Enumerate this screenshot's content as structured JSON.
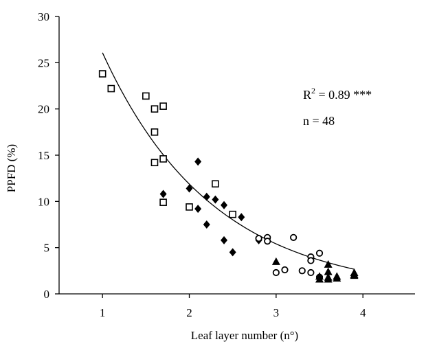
{
  "chart_data": {
    "type": "scatter",
    "xlabel": "Leaf layer number (n°)",
    "ylabel": "PPFD (%)",
    "xlim": [
      0.5,
      4.6
    ],
    "ylim": [
      0,
      30
    ],
    "xticks": [
      1,
      2,
      3,
      4
    ],
    "yticks": [
      0,
      5,
      10,
      15,
      20,
      25,
      30
    ],
    "grid": false,
    "legend": "none",
    "annotations": {
      "r2_prefix": "R",
      "r2_sup": "2",
      "r2_suffix": " = 0.89 ***",
      "n_text": "n = 48"
    },
    "series": [
      {
        "marker": "open-square",
        "points": [
          [
            1.0,
            23.8
          ],
          [
            1.1,
            22.2
          ],
          [
            1.5,
            21.4
          ],
          [
            1.6,
            20.0
          ],
          [
            1.7,
            20.3
          ],
          [
            1.6,
            17.5
          ],
          [
            1.6,
            14.2
          ],
          [
            1.7,
            14.6
          ],
          [
            1.7,
            9.9
          ],
          [
            2.0,
            9.4
          ],
          [
            2.3,
            11.9
          ],
          [
            2.5,
            8.6
          ]
        ]
      },
      {
        "marker": "filled-diamond",
        "points": [
          [
            1.7,
            10.8
          ],
          [
            2.0,
            11.4
          ],
          [
            2.1,
            14.3
          ],
          [
            2.1,
            9.2
          ],
          [
            2.2,
            10.5
          ],
          [
            2.3,
            10.2
          ],
          [
            2.4,
            9.6
          ],
          [
            2.2,
            7.5
          ],
          [
            2.6,
            8.3
          ],
          [
            2.4,
            5.8
          ],
          [
            2.5,
            4.5
          ],
          [
            2.8,
            5.8
          ]
        ]
      },
      {
        "marker": "open-circle",
        "points": [
          [
            2.8,
            6.0
          ],
          [
            2.9,
            6.1
          ],
          [
            2.9,
            5.7
          ],
          [
            3.2,
            6.1
          ],
          [
            3.0,
            2.3
          ],
          [
            3.1,
            2.6
          ],
          [
            3.3,
            2.5
          ],
          [
            3.4,
            2.3
          ],
          [
            3.4,
            4.0
          ],
          [
            3.4,
            3.6
          ],
          [
            3.5,
            4.4
          ],
          [
            3.5,
            1.8
          ]
        ]
      },
      {
        "marker": "filled-triangle",
        "points": [
          [
            3.0,
            3.5
          ],
          [
            3.5,
            1.9
          ],
          [
            3.6,
            3.2
          ],
          [
            3.6,
            2.4
          ],
          [
            3.6,
            1.6
          ],
          [
            3.7,
            1.9
          ],
          [
            3.9,
            2.3
          ],
          [
            3.9,
            2.1
          ],
          [
            3.5,
            1.6
          ],
          [
            3.7,
            1.7
          ],
          [
            3.6,
            1.8
          ],
          [
            3.9,
            2.0
          ]
        ]
      }
    ],
    "fit_curve": {
      "type": "exponential",
      "a": 57.26,
      "b": -0.7865,
      "x_range": [
        1.0,
        3.9
      ]
    }
  }
}
